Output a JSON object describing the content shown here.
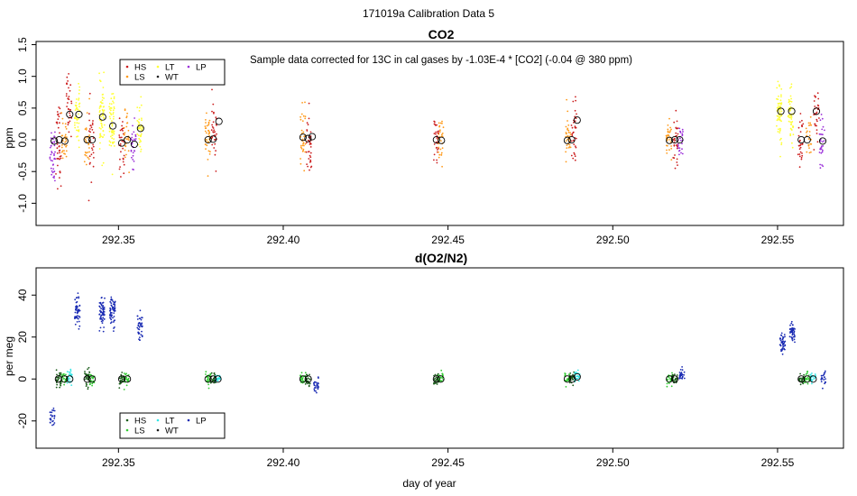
{
  "page_title": "171019a   Calibration Data 5",
  "colors": {
    "HS": "#cc1f1f",
    "LS": "#ff9a1a",
    "LT": "#ffff33",
    "WT": "#222222",
    "LP": "#9b30d9",
    "O2_HS": "#1a5c1a",
    "O2_LS": "#33cc33",
    "O2_LT": "#33e6e6",
    "O2_WT": "#1a1a1a",
    "O2_LP": "#1a2bb3"
  },
  "chart_data": [
    {
      "id": "co2",
      "type": "scatter",
      "title": "CO2",
      "annotation": "Sample data corrected for 13C in cal gases by -1.03E-4 * [CO2] (-0.04 @ 380 ppm)",
      "xlabel": "",
      "ylabel": "ppm",
      "xlim": [
        292.325,
        292.57
      ],
      "ylim": [
        -1.35,
        1.55
      ],
      "xticks": [
        292.35,
        292.4,
        292.45,
        292.5,
        292.55
      ],
      "xtick_labels": [
        "292.35",
        "292.40",
        "292.45",
        "292.50",
        "292.55"
      ],
      "yticks": [
        -1.0,
        -0.5,
        0.0,
        0.5,
        1.0,
        1.5
      ],
      "ytick_labels": [
        "-1.0",
        "-0.5",
        "0.0",
        "0.5",
        "1.0",
        "1.5"
      ],
      "legend": {
        "placement": "top-left",
        "entries": [
          {
            "label": "HS",
            "color_key": "HS"
          },
          {
            "label": "LT",
            "color_key": "LT"
          },
          {
            "label": "LP",
            "color_key": "LP"
          },
          {
            "label": "LS",
            "color_key": "LS"
          },
          {
            "label": "WT",
            "color_key": "WT"
          }
        ]
      },
      "clusters": [
        {
          "x": 292.33,
          "y_center": -0.2,
          "y_spread": 0.5,
          "color_key": "LP",
          "n": 40
        },
        {
          "x": 292.3318,
          "y_center": -0.05,
          "y_spread": 0.6,
          "color_key": "HS",
          "n": 40
        },
        {
          "x": 292.3335,
          "y_center": 0.0,
          "y_spread": 0.4,
          "color_key": "LS",
          "n": 30
        },
        {
          "x": 292.335,
          "y_center": 0.55,
          "y_spread": 0.45,
          "color_key": "HS",
          "n": 35
        },
        {
          "x": 292.3375,
          "y_center": 0.4,
          "y_spread": 0.45,
          "color_key": "LT",
          "n": 45
        },
        {
          "x": 292.3405,
          "y_center": 0.0,
          "y_spread": 0.45,
          "color_key": "LS",
          "n": 30
        },
        {
          "x": 292.3418,
          "y_center": 0.0,
          "y_spread": 0.55,
          "color_key": "HS",
          "n": 30
        },
        {
          "x": 292.345,
          "y_center": 0.3,
          "y_spread": 0.55,
          "color_key": "LT",
          "n": 60
        },
        {
          "x": 292.348,
          "y_center": 0.25,
          "y_spread": 0.55,
          "color_key": "LT",
          "n": 60
        },
        {
          "x": 292.351,
          "y_center": -0.1,
          "y_spread": 0.4,
          "color_key": "HS",
          "n": 30
        },
        {
          "x": 292.3525,
          "y_center": 0.0,
          "y_spread": 0.4,
          "color_key": "LS",
          "n": 30
        },
        {
          "x": 292.3545,
          "y_center": -0.1,
          "y_spread": 0.4,
          "color_key": "LP",
          "n": 30
        },
        {
          "x": 292.3565,
          "y_center": 0.2,
          "y_spread": 0.5,
          "color_key": "LT",
          "n": 40
        },
        {
          "x": 292.377,
          "y_center": 0.0,
          "y_spread": 0.4,
          "color_key": "LS",
          "n": 35
        },
        {
          "x": 292.379,
          "y_center": 0.1,
          "y_spread": 0.45,
          "color_key": "HS",
          "n": 35
        },
        {
          "x": 292.406,
          "y_center": 0.05,
          "y_spread": 0.45,
          "color_key": "LS",
          "n": 35
        },
        {
          "x": 292.4078,
          "y_center": -0.05,
          "y_spread": 0.5,
          "color_key": "HS",
          "n": 35
        },
        {
          "x": 292.4465,
          "y_center": 0.0,
          "y_spread": 0.35,
          "color_key": "HS",
          "n": 30
        },
        {
          "x": 292.4478,
          "y_center": 0.0,
          "y_spread": 0.35,
          "color_key": "LS",
          "n": 30
        },
        {
          "x": 292.4865,
          "y_center": 0.0,
          "y_spread": 0.4,
          "color_key": "LS",
          "n": 35
        },
        {
          "x": 292.4882,
          "y_center": 0.15,
          "y_spread": 0.45,
          "color_key": "HS",
          "n": 35
        },
        {
          "x": 292.517,
          "y_center": 0.0,
          "y_spread": 0.3,
          "color_key": "LS",
          "n": 30
        },
        {
          "x": 292.519,
          "y_center": -0.05,
          "y_spread": 0.4,
          "color_key": "HS",
          "n": 30
        },
        {
          "x": 292.5205,
          "y_center": 0.0,
          "y_spread": 0.35,
          "color_key": "LP",
          "n": 25
        },
        {
          "x": 292.5505,
          "y_center": 0.45,
          "y_spread": 0.5,
          "color_key": "LT",
          "n": 60
        },
        {
          "x": 292.554,
          "y_center": 0.4,
          "y_spread": 0.4,
          "color_key": "LT",
          "n": 50
        },
        {
          "x": 292.557,
          "y_center": 0.0,
          "y_spread": 0.45,
          "color_key": "HS",
          "n": 30
        },
        {
          "x": 292.5595,
          "y_center": 0.0,
          "y_spread": 0.4,
          "color_key": "LS",
          "n": 25
        },
        {
          "x": 292.5618,
          "y_center": 0.3,
          "y_spread": 0.5,
          "color_key": "HS",
          "n": 30
        },
        {
          "x": 292.5635,
          "y_center": -0.1,
          "y_spread": 0.45,
          "color_key": "LP",
          "n": 30
        }
      ],
      "means": [
        {
          "x": 292.3305,
          "y": -0.02
        },
        {
          "x": 292.332,
          "y": 0.0
        },
        {
          "x": 292.3337,
          "y": -0.02
        },
        {
          "x": 292.3352,
          "y": 0.4
        },
        {
          "x": 292.338,
          "y": 0.4
        },
        {
          "x": 292.3405,
          "y": 0.0
        },
        {
          "x": 292.342,
          "y": 0.0
        },
        {
          "x": 292.3452,
          "y": 0.36
        },
        {
          "x": 292.3483,
          "y": 0.22
        },
        {
          "x": 292.351,
          "y": -0.05
        },
        {
          "x": 292.3527,
          "y": 0.0
        },
        {
          "x": 292.3548,
          "y": -0.07
        },
        {
          "x": 292.3567,
          "y": 0.18
        },
        {
          "x": 292.3772,
          "y": 0.0
        },
        {
          "x": 292.3787,
          "y": 0.01
        },
        {
          "x": 292.3805,
          "y": 0.29
        },
        {
          "x": 292.406,
          "y": 0.04
        },
        {
          "x": 292.4075,
          "y": 0.02
        },
        {
          "x": 292.4088,
          "y": 0.05
        },
        {
          "x": 292.4465,
          "y": 0.0
        },
        {
          "x": 292.448,
          "y": -0.01
        },
        {
          "x": 292.4862,
          "y": -0.01
        },
        {
          "x": 292.4875,
          "y": 0.0
        },
        {
          "x": 292.4892,
          "y": 0.31
        },
        {
          "x": 292.5172,
          "y": -0.01
        },
        {
          "x": 292.5188,
          "y": 0.0
        },
        {
          "x": 292.5203,
          "y": 0.0
        },
        {
          "x": 292.551,
          "y": 0.45
        },
        {
          "x": 292.5543,
          "y": 0.45
        },
        {
          "x": 292.5572,
          "y": 0.0
        },
        {
          "x": 292.559,
          "y": 0.0
        },
        {
          "x": 292.5618,
          "y": 0.45
        },
        {
          "x": 292.5637,
          "y": -0.02
        }
      ]
    },
    {
      "id": "o2n2",
      "type": "scatter",
      "title": "d(O2/N2)",
      "annotation": "",
      "xlabel": "day of year",
      "ylabel": "per meg",
      "xlim": [
        292.325,
        292.57
      ],
      "ylim": [
        -33,
        53
      ],
      "xticks": [
        292.35,
        292.4,
        292.45,
        292.5,
        292.55
      ],
      "xtick_labels": [
        "292.35",
        "292.40",
        "292.45",
        "292.50",
        "292.55"
      ],
      "yticks": [
        -20,
        0,
        20,
        40
      ],
      "ytick_labels": [
        "-20",
        "0",
        "20",
        "40"
      ],
      "legend": {
        "placement": "bottom-left",
        "entries": [
          {
            "label": "HS",
            "color_key": "O2_HS"
          },
          {
            "label": "LT",
            "color_key": "O2_LT"
          },
          {
            "label": "LP",
            "color_key": "O2_LP"
          },
          {
            "label": "LS",
            "color_key": "O2_LS"
          },
          {
            "label": "WT",
            "color_key": "O2_WT"
          }
        ]
      },
      "clusters": [
        {
          "x": 292.33,
          "y_center": -18,
          "y_spread": 5,
          "color_key": "O2_LP",
          "n": 25
        },
        {
          "x": 292.3318,
          "y_center": 0,
          "y_spread": 4,
          "color_key": "O2_HS",
          "n": 30
        },
        {
          "x": 292.3335,
          "y_center": 0,
          "y_spread": 3,
          "color_key": "O2_LS",
          "n": 25
        },
        {
          "x": 292.3352,
          "y_center": 0,
          "y_spread": 4,
          "color_key": "O2_LT",
          "n": 25
        },
        {
          "x": 292.3375,
          "y_center": 33,
          "y_spread": 7,
          "color_key": "O2_LP",
          "n": 50
        },
        {
          "x": 292.3405,
          "y_center": 0,
          "y_spread": 5,
          "color_key": "O2_HS",
          "n": 30
        },
        {
          "x": 292.342,
          "y_center": 0,
          "y_spread": 3,
          "color_key": "O2_LS",
          "n": 25
        },
        {
          "x": 292.345,
          "y_center": 31,
          "y_spread": 7,
          "color_key": "O2_LP",
          "n": 60
        },
        {
          "x": 292.3482,
          "y_center": 32,
          "y_spread": 7,
          "color_key": "O2_LP",
          "n": 60
        },
        {
          "x": 292.351,
          "y_center": 0,
          "y_spread": 3,
          "color_key": "O2_HS",
          "n": 25
        },
        {
          "x": 292.3525,
          "y_center": 0,
          "y_spread": 3,
          "color_key": "O2_LS",
          "n": 25
        },
        {
          "x": 292.3565,
          "y_center": 26,
          "y_spread": 7,
          "color_key": "O2_LP",
          "n": 40
        },
        {
          "x": 292.3772,
          "y_center": 0,
          "y_spread": 3,
          "color_key": "O2_LS",
          "n": 25
        },
        {
          "x": 292.3787,
          "y_center": 0,
          "y_spread": 3,
          "color_key": "O2_HS",
          "n": 25
        },
        {
          "x": 292.3802,
          "y_center": 0,
          "y_spread": 2,
          "color_key": "O2_LT",
          "n": 20
        },
        {
          "x": 292.406,
          "y_center": 0,
          "y_spread": 3,
          "color_key": "O2_LS",
          "n": 25
        },
        {
          "x": 292.4075,
          "y_center": 0,
          "y_spread": 3,
          "color_key": "O2_HS",
          "n": 25
        },
        {
          "x": 292.41,
          "y_center": -3,
          "y_spread": 3,
          "color_key": "O2_LP",
          "n": 25
        },
        {
          "x": 292.4465,
          "y_center": 0,
          "y_spread": 3,
          "color_key": "O2_HS",
          "n": 25
        },
        {
          "x": 292.4478,
          "y_center": 0,
          "y_spread": 3,
          "color_key": "O2_LS",
          "n": 25
        },
        {
          "x": 292.4862,
          "y_center": 0,
          "y_spread": 3,
          "color_key": "O2_LS",
          "n": 25
        },
        {
          "x": 292.4877,
          "y_center": 0,
          "y_spread": 3,
          "color_key": "O2_HS",
          "n": 25
        },
        {
          "x": 292.4892,
          "y_center": 1,
          "y_spread": 4,
          "color_key": "O2_LT",
          "n": 25
        },
        {
          "x": 292.5172,
          "y_center": 0,
          "y_spread": 3,
          "color_key": "O2_LS",
          "n": 25
        },
        {
          "x": 292.5188,
          "y_center": 0,
          "y_spread": 3,
          "color_key": "O2_HS",
          "n": 25
        },
        {
          "x": 292.521,
          "y_center": 2,
          "y_spread": 3,
          "color_key": "O2_LP",
          "n": 25
        },
        {
          "x": 292.5515,
          "y_center": 17,
          "y_spread": 5,
          "color_key": "O2_LP",
          "n": 45
        },
        {
          "x": 292.5545,
          "y_center": 22,
          "y_spread": 5,
          "color_key": "O2_LP",
          "n": 45
        },
        {
          "x": 292.5572,
          "y_center": 0,
          "y_spread": 3,
          "color_key": "O2_HS",
          "n": 25
        },
        {
          "x": 292.559,
          "y_center": 0,
          "y_spread": 3,
          "color_key": "O2_LS",
          "n": 25
        },
        {
          "x": 292.5608,
          "y_center": 0,
          "y_spread": 3,
          "color_key": "O2_LT",
          "n": 20
        },
        {
          "x": 292.5638,
          "y_center": 0,
          "y_spread": 3,
          "color_key": "O2_LP",
          "n": 25
        }
      ],
      "means": [
        {
          "x": 292.3318,
          "y": 0
        },
        {
          "x": 292.3336,
          "y": 0
        },
        {
          "x": 292.3352,
          "y": 0
        },
        {
          "x": 292.3405,
          "y": 0
        },
        {
          "x": 292.342,
          "y": 0
        },
        {
          "x": 292.351,
          "y": 0
        },
        {
          "x": 292.3527,
          "y": 0
        },
        {
          "x": 292.3772,
          "y": 0
        },
        {
          "x": 292.3787,
          "y": 0
        },
        {
          "x": 292.3802,
          "y": 0
        },
        {
          "x": 292.406,
          "y": 0
        },
        {
          "x": 292.4076,
          "y": 0
        },
        {
          "x": 292.4465,
          "y": 0
        },
        {
          "x": 292.4478,
          "y": 0
        },
        {
          "x": 292.4862,
          "y": 0
        },
        {
          "x": 292.4877,
          "y": 0
        },
        {
          "x": 292.4892,
          "y": 1
        },
        {
          "x": 292.5172,
          "y": 0
        },
        {
          "x": 292.5188,
          "y": 0
        },
        {
          "x": 292.5572,
          "y": 0
        },
        {
          "x": 292.559,
          "y": 0
        },
        {
          "x": 292.5608,
          "y": 0
        }
      ]
    }
  ]
}
